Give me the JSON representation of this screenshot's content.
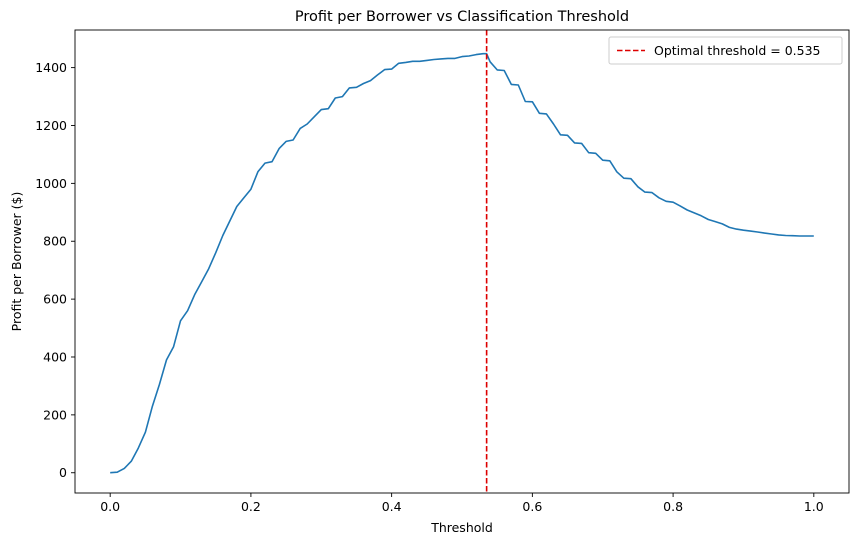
{
  "chart_data": {
    "type": "line",
    "title": "Profit per Borrower vs Classification Threshold",
    "xlabel": "Threshold",
    "ylabel": "Profit per Borrower ($)",
    "xlim": [
      -0.05,
      1.05
    ],
    "ylim": [
      -70,
      1530
    ],
    "xticks": [
      0.0,
      0.2,
      0.4,
      0.6,
      0.8,
      1.0
    ],
    "xtick_labels": [
      "0.0",
      "0.2",
      "0.4",
      "0.6",
      "0.8",
      "1.0"
    ],
    "yticks": [
      0,
      200,
      400,
      600,
      800,
      1000,
      1200,
      1400
    ],
    "ytick_labels": [
      "0",
      "200",
      "400",
      "600",
      "800",
      "1000",
      "1200",
      "1400"
    ],
    "grid": false,
    "legend_position": "top-right",
    "series": [
      {
        "color": "#1f77b4",
        "x": [
          0.0,
          0.01,
          0.02,
          0.03,
          0.04,
          0.05,
          0.06,
          0.07,
          0.08,
          0.09,
          0.1,
          0.11,
          0.12,
          0.13,
          0.14,
          0.15,
          0.16,
          0.17,
          0.18,
          0.19,
          0.2,
          0.21,
          0.22,
          0.23,
          0.24,
          0.25,
          0.26,
          0.27,
          0.28,
          0.29,
          0.3,
          0.31,
          0.32,
          0.33,
          0.34,
          0.35,
          0.36,
          0.37,
          0.38,
          0.39,
          0.4,
          0.41,
          0.42,
          0.43,
          0.44,
          0.45,
          0.46,
          0.47,
          0.48,
          0.49,
          0.5,
          0.51,
          0.52,
          0.53,
          0.535,
          0.54,
          0.55,
          0.56,
          0.57,
          0.58,
          0.59,
          0.6,
          0.61,
          0.62,
          0.63,
          0.64,
          0.65,
          0.66,
          0.67,
          0.68,
          0.69,
          0.7,
          0.71,
          0.72,
          0.73,
          0.74,
          0.75,
          0.76,
          0.77,
          0.78,
          0.79,
          0.8,
          0.81,
          0.82,
          0.83,
          0.84,
          0.85,
          0.86,
          0.87,
          0.88,
          0.89,
          0.9,
          0.91,
          0.92,
          0.93,
          0.94,
          0.95,
          0.96,
          0.97,
          0.98,
          0.99,
          1.0
        ],
        "y": [
          0,
          2,
          15,
          40,
          85,
          140,
          230,
          305,
          390,
          435,
          525,
          560,
          615,
          660,
          705,
          760,
          820,
          870,
          920,
          950,
          980,
          1040,
          1070,
          1075,
          1120,
          1145,
          1150,
          1190,
          1205,
          1230,
          1255,
          1258,
          1295,
          1300,
          1330,
          1332,
          1345,
          1355,
          1375,
          1393,
          1395,
          1415,
          1418,
          1422,
          1422,
          1425,
          1428,
          1430,
          1432,
          1432,
          1438,
          1440,
          1445,
          1448,
          1448,
          1420,
          1392,
          1390,
          1342,
          1340,
          1283,
          1282,
          1242,
          1240,
          1205,
          1168,
          1166,
          1140,
          1138,
          1106,
          1104,
          1080,
          1078,
          1040,
          1018,
          1016,
          988,
          970,
          968,
          950,
          938,
          935,
          922,
          908,
          898,
          888,
          875,
          868,
          860,
          848,
          842,
          838,
          835,
          832,
          828,
          825,
          822,
          820,
          819,
          818,
          818,
          818
        ]
      }
    ],
    "vline": {
      "x": 0.535,
      "color": "#dd0000",
      "style": "dashed",
      "label": "Optimal threshold = 0.535"
    }
  }
}
